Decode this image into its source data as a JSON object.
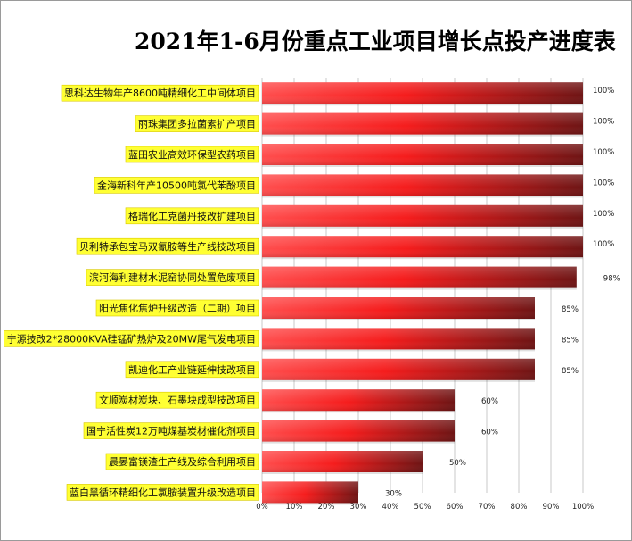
{
  "chart_data": {
    "type": "bar",
    "orientation": "horizontal",
    "title": "2021年1-6月份重点工业项目增长点投产进度表",
    "categories": [
      "思科达生物年产8600吨精细化工中间体项目",
      "丽珠集团多拉菌素扩产项目",
      "蓝田农业高效环保型农药项目",
      "金海新科年产10500吨氯代苯酚项目",
      "格瑞化工克菌丹技改扩建项目",
      "贝利特承包宝马双氰胺等生产线技改项目",
      "滨河海利建材水泥窑协同处置危废项目",
      "阳光焦化焦炉升级改造（二期）项目",
      "宁源技改2*28000KVA硅锰矿热炉及20MW尾气发电项目",
      "凯迪化工产业链延伸技改项目",
      "文顺炭材炭块、石墨块成型技改项目",
      "国宁活性炭12万吨煤基炭材催化剂项目",
      "晨晏富镁渣生产线及综合利用项目",
      "蓝白黑循环精细化工氯胺装置升级改造项目"
    ],
    "values": [
      100,
      100,
      100,
      100,
      100,
      100,
      98,
      85,
      85,
      85,
      60,
      60,
      50,
      30
    ],
    "value_labels": [
      "100%",
      "100%",
      "100%",
      "100%",
      "100%",
      "100%",
      "98%",
      "85%",
      "85%",
      "85%",
      "60%",
      "60%",
      "50%",
      "30%"
    ],
    "xlim": [
      0,
      100
    ],
    "x_ticks": [
      "0%",
      "10%",
      "20%",
      "30%",
      "40%",
      "50%",
      "60%",
      "70%",
      "80%",
      "90%",
      "100%"
    ],
    "grid": true,
    "legend": "none",
    "colors": {
      "bar_light": "#ff4d4d",
      "bar_mid": "#f51c1c",
      "bar_dark": "#6e1414",
      "label_highlight": "#ffff33",
      "grid": "#c8c8c8"
    }
  }
}
